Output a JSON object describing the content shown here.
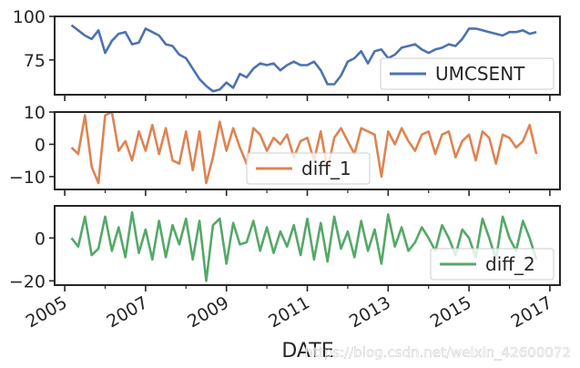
{
  "chart_data": [
    {
      "type": "line",
      "series": [
        {
          "name": "UMCSENT",
          "color": "#4c72b0"
        }
      ],
      "ylim": [
        55,
        100
      ],
      "yticks": [
        "75",
        "100"
      ],
      "ytick_values": [
        75,
        100
      ],
      "legend_position": "bottom-right",
      "x": [
        "2005-03",
        "2005-05",
        "2005-07",
        "2005-09",
        "2005-11",
        "2006-01",
        "2006-03",
        "2006-05",
        "2006-07",
        "2006-09",
        "2006-11",
        "2007-01",
        "2007-03",
        "2007-05",
        "2007-07",
        "2007-09",
        "2007-11",
        "2008-01",
        "2008-03",
        "2008-05",
        "2008-07",
        "2008-09",
        "2008-11",
        "2009-01",
        "2009-03",
        "2009-05",
        "2009-07",
        "2009-09",
        "2009-11",
        "2010-01",
        "2010-03",
        "2010-05",
        "2010-07",
        "2010-09",
        "2010-11",
        "2011-01",
        "2011-03",
        "2011-05",
        "2011-07",
        "2011-09",
        "2011-11",
        "2012-01",
        "2012-03",
        "2012-05",
        "2012-07",
        "2012-09",
        "2012-11",
        "2013-01",
        "2013-03",
        "2013-05",
        "2013-07",
        "2013-09",
        "2013-11",
        "2014-01",
        "2014-03",
        "2014-05",
        "2014-07",
        "2014-09",
        "2014-11",
        "2015-01",
        "2015-03",
        "2015-05",
        "2015-07",
        "2015-09",
        "2015-11",
        "2016-01",
        "2016-03",
        "2016-05",
        "2016-07",
        "2016-09"
      ],
      "values": [
        95,
        92,
        89,
        87,
        92,
        79,
        86,
        90,
        91,
        84,
        85,
        93,
        91,
        89,
        84,
        83,
        78,
        76,
        70,
        64,
        60,
        57,
        58,
        62,
        59,
        67,
        65,
        70,
        73,
        72,
        73,
        69,
        72,
        74,
        72,
        72,
        74,
        69,
        61,
        61,
        66,
        74,
        76,
        80,
        73,
        80,
        81,
        76,
        78,
        82,
        83,
        84,
        81,
        79,
        81,
        82,
        84,
        83,
        87,
        93,
        93,
        92,
        91,
        90,
        89,
        91,
        91,
        92,
        90,
        91
      ]
    },
    {
      "type": "line",
      "series": [
        {
          "name": "diff_1",
          "color": "#dd8452"
        }
      ],
      "ylim": [
        -14,
        10
      ],
      "yticks": [
        "10",
        "0",
        "−10"
      ],
      "ytick_values": [
        10,
        0,
        -10
      ],
      "legend_position": "bottom-center",
      "x": [
        "2005-03",
        "2005-05",
        "2005-07",
        "2005-09",
        "2005-11",
        "2006-01",
        "2006-03",
        "2006-05",
        "2006-07",
        "2006-09",
        "2006-11",
        "2007-01",
        "2007-03",
        "2007-05",
        "2007-07",
        "2007-09",
        "2007-11",
        "2008-01",
        "2008-03",
        "2008-05",
        "2008-07",
        "2008-09",
        "2008-11",
        "2009-01",
        "2009-03",
        "2009-05",
        "2009-07",
        "2009-09",
        "2009-11",
        "2010-01",
        "2010-03",
        "2010-05",
        "2010-07",
        "2010-09",
        "2010-11",
        "2011-01",
        "2011-03",
        "2011-05",
        "2011-07",
        "2011-09",
        "2011-11",
        "2012-01",
        "2012-03",
        "2012-05",
        "2012-07",
        "2012-09",
        "2012-11",
        "2013-01",
        "2013-03",
        "2013-05",
        "2013-07",
        "2013-09",
        "2013-11",
        "2014-01",
        "2014-03",
        "2014-05",
        "2014-07",
        "2014-09",
        "2014-11",
        "2015-01",
        "2015-03",
        "2015-05",
        "2015-07",
        "2015-09",
        "2015-11",
        "2016-01",
        "2016-03",
        "2016-05",
        "2016-07",
        "2016-09"
      ],
      "values": [
        -1,
        -3,
        9,
        -7,
        -12,
        9,
        10,
        -2,
        1,
        -5,
        4,
        -2,
        6,
        -3,
        5,
        -5,
        -6,
        4,
        -8,
        4,
        -12,
        -4,
        7,
        -2,
        5,
        -1,
        -6,
        5,
        3,
        -2,
        2,
        0,
        3,
        -4,
        1,
        2,
        -5,
        4,
        -8,
        2,
        5,
        1,
        -3,
        5,
        4,
        3,
        -10,
        4,
        0,
        5,
        1,
        -2,
        3,
        4,
        -3,
        3,
        4,
        -4,
        1,
        3,
        -5,
        4,
        2,
        -6,
        3,
        2,
        -1,
        1,
        6,
        -3
      ]
    },
    {
      "type": "line",
      "series": [
        {
          "name": "diff_2",
          "color": "#55a868"
        }
      ],
      "ylim": [
        -22,
        15
      ],
      "yticks": [
        "0",
        "−20"
      ],
      "ytick_values": [
        0,
        -20
      ],
      "legend_position": "bottom-right",
      "x": [
        "2005-03",
        "2005-05",
        "2005-07",
        "2005-09",
        "2005-11",
        "2006-01",
        "2006-03",
        "2006-05",
        "2006-07",
        "2006-09",
        "2006-11",
        "2007-01",
        "2007-03",
        "2007-05",
        "2007-07",
        "2007-09",
        "2007-11",
        "2008-01",
        "2008-03",
        "2008-05",
        "2008-07",
        "2008-09",
        "2008-11",
        "2009-01",
        "2009-03",
        "2009-05",
        "2009-07",
        "2009-09",
        "2009-11",
        "2010-01",
        "2010-03",
        "2010-05",
        "2010-07",
        "2010-09",
        "2010-11",
        "2011-01",
        "2011-03",
        "2011-05",
        "2011-07",
        "2011-09",
        "2011-11",
        "2012-01",
        "2012-03",
        "2012-05",
        "2012-07",
        "2012-09",
        "2012-11",
        "2013-01",
        "2013-03",
        "2013-05",
        "2013-07",
        "2013-09",
        "2013-11",
        "2014-01",
        "2014-03",
        "2014-05",
        "2014-07",
        "2014-09",
        "2014-11",
        "2015-01",
        "2015-03",
        "2015-05",
        "2015-07",
        "2015-09",
        "2015-11",
        "2016-01",
        "2016-03",
        "2016-05",
        "2016-07",
        "2016-09"
      ],
      "values": [
        0,
        -4,
        10,
        -8,
        -5,
        10,
        -6,
        5,
        -9,
        12,
        -7,
        4,
        -10,
        8,
        -9,
        6,
        -3,
        9,
        -10,
        8,
        -20,
        6,
        9,
        -12,
        7,
        -3,
        -2,
        8,
        -6,
        5,
        -7,
        3,
        -4,
        6,
        -8,
        9,
        -10,
        7,
        -11,
        10,
        -5,
        3,
        -9,
        8,
        -6,
        4,
        -12,
        11,
        -4,
        5,
        -6,
        -2,
        5,
        0,
        -6,
        6,
        0,
        -8,
        4,
        0,
        -9,
        9,
        0,
        -10,
        10,
        0,
        -6,
        8,
        0,
        -10
      ]
    }
  ],
  "x_axis": {
    "label": "DATE",
    "tick_labels": [
      "2005",
      "2007",
      "2009",
      "2011",
      "2013",
      "2015",
      "2017"
    ],
    "range": [
      "2004-10",
      "2017-04"
    ]
  },
  "watermark": "https://blog.csdn.net/weixin_42600072"
}
